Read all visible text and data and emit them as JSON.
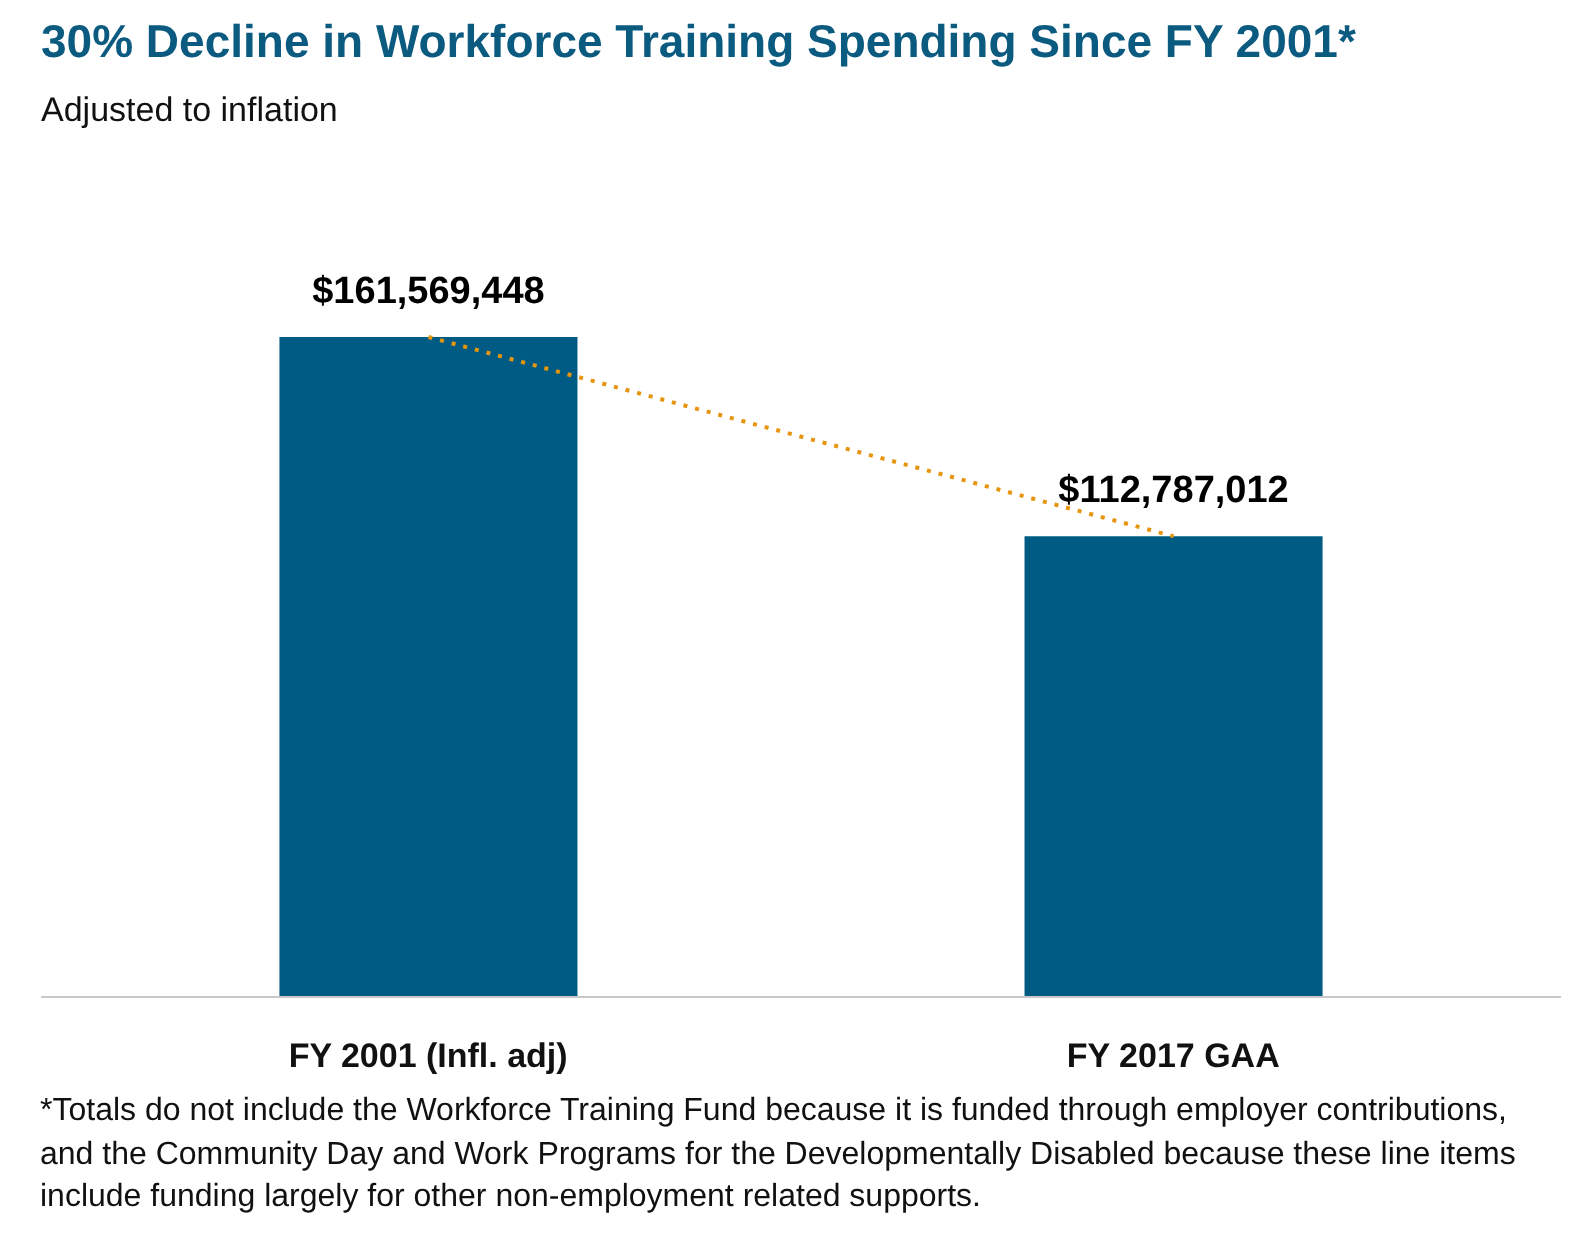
{
  "chart_data": {
    "type": "bar",
    "title": "30% Decline in Workforce Training Spending Since FY 2001*",
    "subtitle": "Adjusted to inflation",
    "categories": [
      "FY 2001 (Infl. adj)",
      "FY 2017 GAA"
    ],
    "series": [
      {
        "color": "#005b84",
        "values": [
          161569448,
          112787012
        ],
        "value_labels": [
          "$161,569,448",
          "$112,787,012"
        ]
      },
      {
        "type": "line",
        "color": "#e6950f",
        "values": [
          161569448,
          112787012
        ],
        "line_style": "dotted",
        "marker": "none"
      }
    ],
    "grid": false,
    "tick_labels": "x",
    "annotations": [
      "*Totals do not include the Workforce Training Fund because it is funded through employer contributions, and the Community Day and Work Programs for the Developmentally Disabled because these line items include funding largely for other non-employment related supports."
    ]
  }
}
